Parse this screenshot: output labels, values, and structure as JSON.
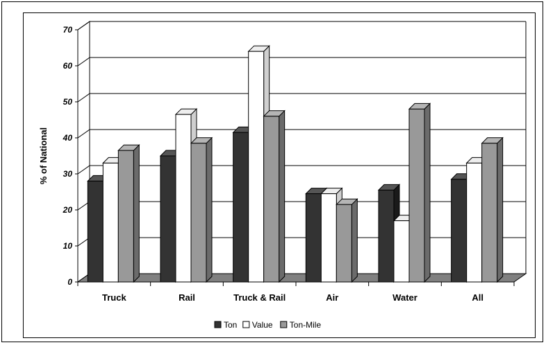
{
  "chart_data": {
    "type": "bar",
    "title": "",
    "xlabel": "",
    "ylabel": "% of National",
    "ylim": [
      0,
      70
    ],
    "yticks": [
      0,
      10,
      20,
      30,
      40,
      50,
      60,
      70
    ],
    "categories": [
      "Truck",
      "Rail",
      "Truck & Rail",
      "Air",
      "Water",
      "All"
    ],
    "series": [
      {
        "name": "Ton",
        "color": "#333333",
        "values": [
          28,
          35,
          41.5,
          24.5,
          25.5,
          28.5
        ]
      },
      {
        "name": "Value",
        "color": "#ffffff",
        "values": [
          33,
          46.5,
          64,
          24.5,
          17,
          33
        ]
      },
      {
        "name": "Ton-Mile",
        "color": "#999999",
        "values": [
          36.5,
          38.5,
          46,
          21.5,
          48,
          38.5
        ]
      }
    ],
    "grid": true,
    "legend_position": "bottom"
  }
}
